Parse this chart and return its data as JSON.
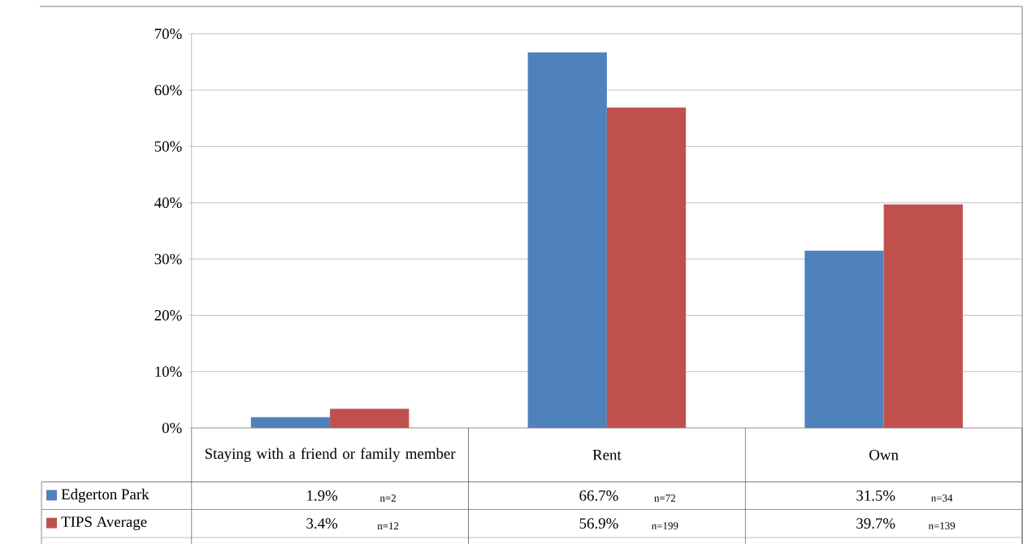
{
  "chart_data": {
    "type": "bar",
    "categories": [
      "Staying with a friend or family member",
      "Rent",
      "Own"
    ],
    "series": [
      {
        "name": "Edgerton Park",
        "color": "#4f81bd",
        "values": [
          1.9,
          66.7,
          31.5
        ],
        "value_labels": [
          "1.9%",
          "66.7%",
          "31.5%"
        ]
      },
      {
        "name": "TIPS Average",
        "color": "#c0504d",
        "values": [
          3.4,
          56.9,
          39.7
        ],
        "value_labels": [
          "3.4%",
          "56.9%",
          "39.7%"
        ]
      }
    ],
    "ylim": [
      0,
      70
    ],
    "yticks": [
      {
        "value": 0,
        "label": "0%"
      },
      {
        "value": 10,
        "label": "10%"
      },
      {
        "value": 20,
        "label": "20%"
      },
      {
        "value": 30,
        "label": "30%"
      },
      {
        "value": 40,
        "label": "40%"
      },
      {
        "value": 50,
        "label": "50%"
      },
      {
        "value": 60,
        "label": "60%"
      },
      {
        "value": 70,
        "label": "70%"
      }
    ],
    "grid": "y",
    "legend": "bottom",
    "annotations": [
      "n=2",
      "n=72",
      "n=34",
      "n=12",
      "n=199",
      "n=139"
    ]
  }
}
